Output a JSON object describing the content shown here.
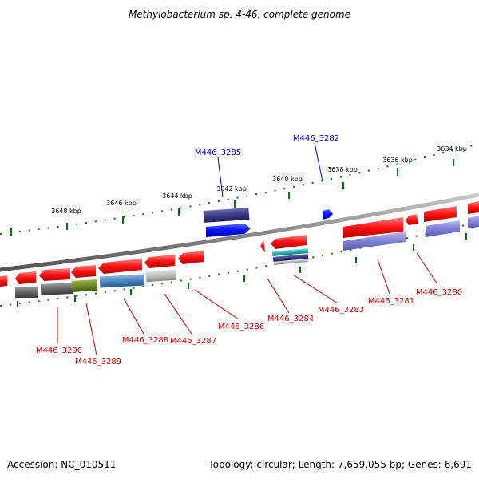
{
  "title": "Methylobacterium sp. 4-46, complete genome",
  "footer": {
    "accession": "Accession: NC_010511",
    "summary": "Topology: circular; Length: 7,659,055 bp; Genes: 6,691"
  },
  "ticks": [
    "3634 kbp",
    "3636 kbp",
    "3638 kbp",
    "3640 kbp",
    "3642 kbp",
    "3644 kbp",
    "3646 kbp",
    "3648 kbp"
  ],
  "gene_labels": {
    "top": [
      "M446_3285",
      "M446_3282"
    ],
    "bottom": [
      "M446_3290",
      "M446_3289",
      "M446_3288",
      "M446_3287",
      "M446_3286",
      "M446_3284",
      "M446_3283",
      "M446_3281",
      "M446_3280"
    ]
  },
  "colors": {
    "backbone": "#8a8a8a",
    "gene_red": "#ff1a1a",
    "gene_blue": "#0a14ff",
    "gene_dark_blue": "#3c3c8c",
    "gene_light_blue": "#8c8cdc",
    "label_red": "#cc0000",
    "label_blue": "#0000cc",
    "tick_green": "#0a6e0a"
  }
}
